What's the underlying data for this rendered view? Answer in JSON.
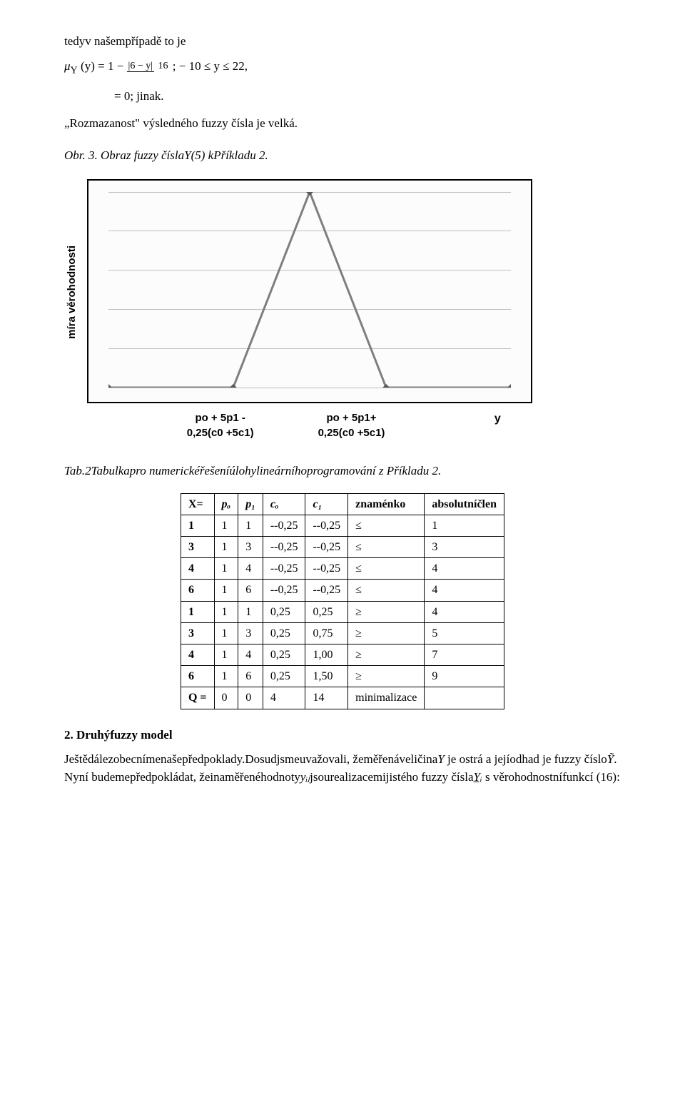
{
  "intro_line": "tedyv našempřípadě to je",
  "formula": {
    "lhs_mu": "μ",
    "lhs_sub": "Y",
    "lhs_arg": "(y) = 1 −",
    "frac_num": "|6 − y|",
    "frac_den": "16",
    "cond": " ;  − 10 ≤ y ≤ 22,",
    "else": "= 0; jinak."
  },
  "quote_line": "„Rozmazanost\" výsledného fuzzy čísla je velká.",
  "fig_caption": "Obr. 3. Obraz fuzzy číslaY(5) kPříkladu 2.",
  "chart": {
    "type": "line",
    "background_color": "#fcfcfc",
    "border_color": "#000000",
    "grid_color": "#bfbfbf",
    "line_color": "#7e7e7e",
    "line_width": 3,
    "marker_style": "diamond",
    "marker_size": 5,
    "marker_fill": "#595959",
    "grid_rows": 5,
    "y_axis_label": "míra věrohodnosti",
    "x_positions": [
      0.0,
      0.31,
      0.5,
      0.69,
      1.0
    ],
    "y_values": [
      0.0,
      0.0,
      1.0,
      0.0,
      0.0
    ],
    "x_label_left_1": "po + 5p1 -",
    "x_label_left_2": "0,25(c0 +5c1)",
    "x_label_mid_1": "po + 5p1+",
    "x_label_mid_2": "0,25(c0 +5c1)",
    "x_label_right": "y"
  },
  "tab_caption": "Tab.2Tabulkapro numerickéřešeníúlohylineárníhoprogramování z Příkladu 2.",
  "table": {
    "columns": [
      "X=",
      "pₒ",
      "p₁",
      "cₒ",
      "c₁",
      "znaménko",
      "absolutníčlen"
    ],
    "columns_italic": [
      false,
      true,
      true,
      true,
      true,
      false,
      false
    ],
    "rows": [
      [
        "1",
        "1",
        "1",
        "--0,25",
        "--0,25",
        "≤",
        "1"
      ],
      [
        "3",
        "1",
        "3",
        "--0,25",
        "--0,25",
        "≤",
        "3"
      ],
      [
        "4",
        "1",
        "4",
        "--0,25",
        "--0,25",
        "≤",
        "4"
      ],
      [
        "6",
        "1",
        "6",
        "--0,25",
        "--0,25",
        "≤",
        "4"
      ],
      [
        "1",
        "1",
        "1",
        "0,25",
        "0,25",
        "≥",
        "4"
      ],
      [
        "3",
        "1",
        "3",
        "0,25",
        "0,75",
        "≥",
        "5"
      ],
      [
        "4",
        "1",
        "4",
        "0,25",
        "1,00",
        "≥",
        "7"
      ],
      [
        "6",
        "1",
        "6",
        "0,25",
        "1,50",
        "≥",
        "9"
      ],
      [
        "Q =",
        "0",
        "0",
        "4",
        "14",
        "minimalizace",
        ""
      ]
    ]
  },
  "section_heading": "2. Druhýfuzzy model",
  "final_p1_a": "Ještědálezobecnímenašepředpoklady.Dosudjsmeuvažovali, žeměřenáveličina",
  "final_p1_b": "Y",
  "final_p1_c": " je ostrá a jejíodhad je fuzzy číslo",
  "final_p1_d": "Ỹ",
  "final_p1_e": ". Nyní budemepředpokládat, žeinaměřenéhodnoty",
  "final_p1_f": "yᵢⱼ",
  "final_p1_g": "jsourealizacemijistého fuzzy čísla",
  "final_p1_h": "Yᵢ",
  "final_p1_i": " s věrohodnostnífunkcí (16):"
}
